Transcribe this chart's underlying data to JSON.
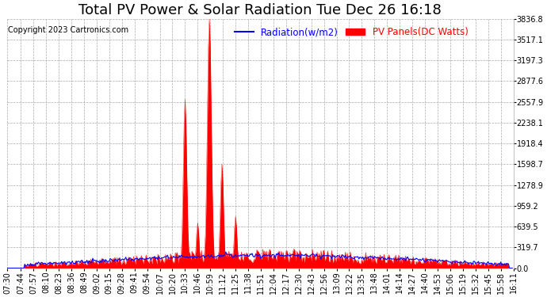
{
  "title": "Total PV Power & Solar Radiation Tue Dec 26 16:18",
  "copyright": "Copyright 2023 Cartronics.com",
  "legend_radiation": "Radiation(w/m2)",
  "legend_pv": "PV Panels(DC Watts)",
  "radiation_color": "blue",
  "pv_color": "red",
  "background_color": "#ffffff",
  "grid_color": "#aaaaaa",
  "ymax": 3836.8,
  "yticks": [
    0.0,
    319.7,
    639.5,
    959.2,
    1278.9,
    1598.7,
    1918.4,
    2238.1,
    2557.9,
    2877.6,
    3197.3,
    3517.1,
    3836.8
  ],
  "xtick_labels": [
    "07:30",
    "07:44",
    "07:57",
    "08:10",
    "08:23",
    "08:36",
    "08:49",
    "09:02",
    "09:15",
    "09:28",
    "09:41",
    "09:54",
    "10:07",
    "10:20",
    "10:33",
    "10:46",
    "10:59",
    "11:12",
    "11:25",
    "11:38",
    "11:51",
    "12:04",
    "12:17",
    "12:30",
    "12:43",
    "12:56",
    "13:09",
    "13:22",
    "13:35",
    "13:48",
    "14:01",
    "14:14",
    "14:27",
    "14:40",
    "14:53",
    "15:06",
    "15:19",
    "15:32",
    "15:45",
    "15:58",
    "16:11"
  ],
  "title_fontsize": 13,
  "tick_fontsize": 7,
  "legend_fontsize": 8.5,
  "copyright_fontsize": 7
}
